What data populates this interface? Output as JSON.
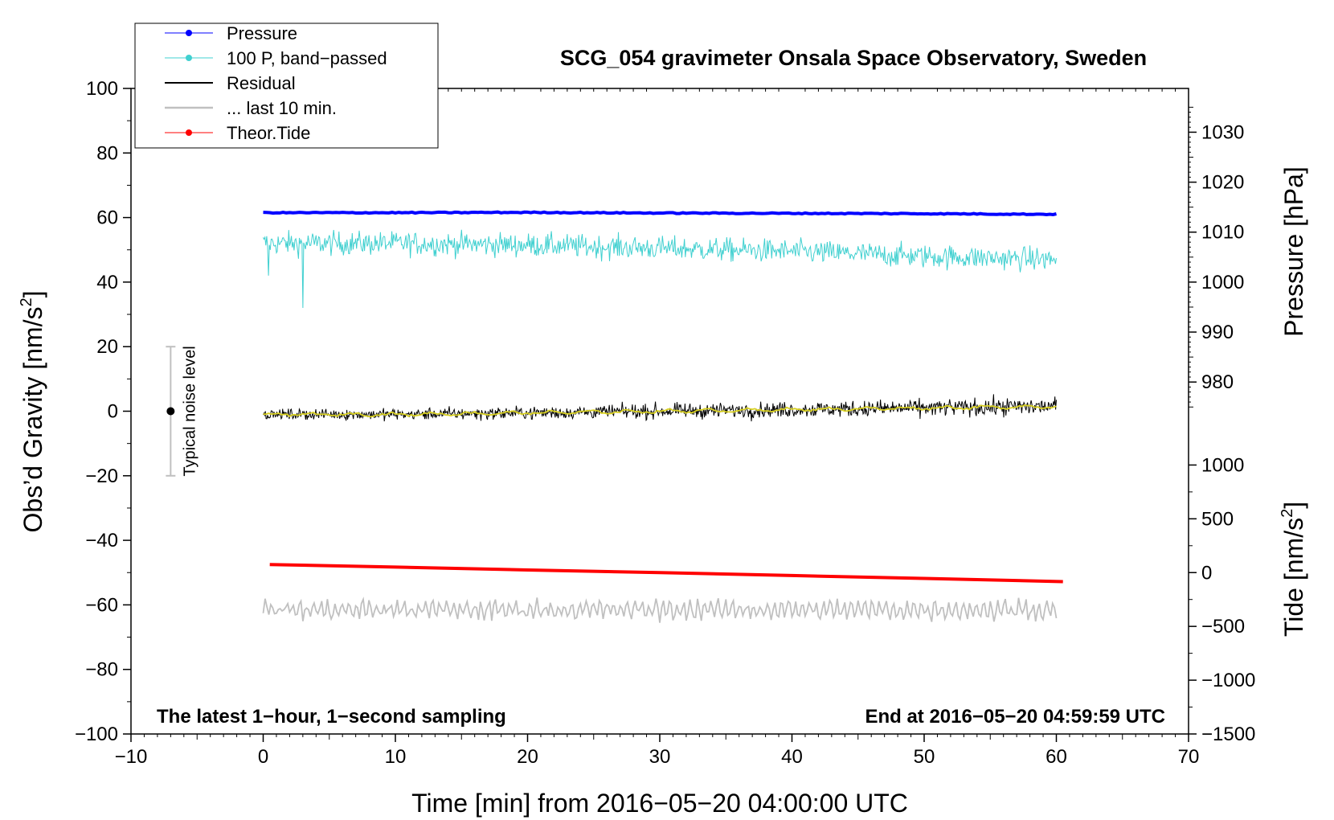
{
  "chart_data": {
    "type": "line",
    "title": "SCG_054 gravimeter Onsala Space Observatory, Sweden",
    "xlabel": "Time [min] from 2016−05−20 04:00:00 UTC",
    "ylabel_left_text": "Obs’d Gravity [nm/s",
    "ylabel_left_sup": "2",
    "ylabel_left_close": "]",
    "ylabel_right_pressure": "Pressure [hPa]",
    "ylabel_right_tide_text": "Tide [nm/s",
    "ylabel_right_tide_sup": "2",
    "ylabel_right_tide_close": "]",
    "xlim": [
      -10,
      70
    ],
    "ylim_left": [
      -100,
      100
    ],
    "x_ticks": [
      -10,
      0,
      10,
      20,
      30,
      40,
      50,
      60,
      70
    ],
    "x_tick_labels": [
      "−10",
      "0",
      "10",
      "20",
      "30",
      "40",
      "50",
      "60",
      "70"
    ],
    "y_ticks_left": [
      -100,
      -80,
      -60,
      -40,
      -20,
      0,
      20,
      40,
      60,
      80,
      100
    ],
    "y_tick_labels_left": [
      "−100",
      "−80",
      "−60",
      "−40",
      "−20",
      "0",
      "20",
      "40",
      "60",
      "80",
      "100"
    ],
    "pressure_axis": {
      "ticks": [
        980,
        990,
        1000,
        1010,
        1020,
        1030
      ],
      "tick_labels": [
        "980",
        "990",
        "1000",
        "1010",
        "1020",
        "1030"
      ],
      "gravity_at_1000": 40,
      "gravity_per_hpa": 1.548
    },
    "tide_axis": {
      "ticks": [
        -1500,
        -1000,
        -500,
        0,
        500,
        1000
      ],
      "tick_labels": [
        "−1500",
        "−1000",
        "−500",
        "0",
        "500",
        "1000"
      ],
      "gravity_at_0": -50,
      "gravity_per_unit": 0.03333
    },
    "annotation_left": "The latest 1−hour, 1−second sampling",
    "annotation_right": "End at 2016−05−20 04:59:59 UTC",
    "noise_label": "Typical noise level",
    "noise_bar": {
      "x": -7,
      "center": 0,
      "low": -20,
      "high": 20
    },
    "series": [
      {
        "name": "Pressure",
        "color": "#0000ff",
        "marker": true,
        "line": "pressure"
      },
      {
        "name": "100 P, band−passed",
        "color": "#40d0d0",
        "marker": true,
        "line": "pband"
      },
      {
        "name": "Residual",
        "color": "#000000",
        "marker": false,
        "line": "residual"
      },
      {
        "name": "... last 10 min.",
        "color": "#c0c0c0",
        "marker": false,
        "line": "last10"
      },
      {
        "name": "Theor.Tide",
        "color": "#ff0000",
        "marker": true,
        "line": "tide"
      }
    ],
    "pressure_curve": {
      "x": [
        0,
        10,
        20,
        30,
        40,
        50,
        60
      ],
      "y": [
        61.5,
        61.5,
        61.6,
        61.4,
        61.3,
        61.2,
        61.0
      ]
    },
    "pband_mean": {
      "x": [
        0,
        10,
        20,
        30,
        40,
        50,
        60
      ],
      "y": [
        52,
        52,
        51.5,
        50.5,
        49.5,
        48,
        47
      ]
    },
    "residual_mean": {
      "x": [
        0,
        10,
        20,
        30,
        40,
        50,
        60
      ],
      "y": [
        -1,
        -1,
        -0.5,
        0,
        0.5,
        1,
        1.5
      ]
    },
    "tide_curve": {
      "x": [
        0.5,
        10,
        20,
        30,
        40,
        50,
        60.5
      ],
      "y": [
        -47.5,
        -48.3,
        -49.2,
        -50.0,
        -50.9,
        -51.8,
        -52.8
      ]
    },
    "last10_mean": {
      "x": [
        0,
        60
      ],
      "y": [
        -61.5,
        -61.5
      ]
    },
    "legend_placement": "top-left"
  }
}
